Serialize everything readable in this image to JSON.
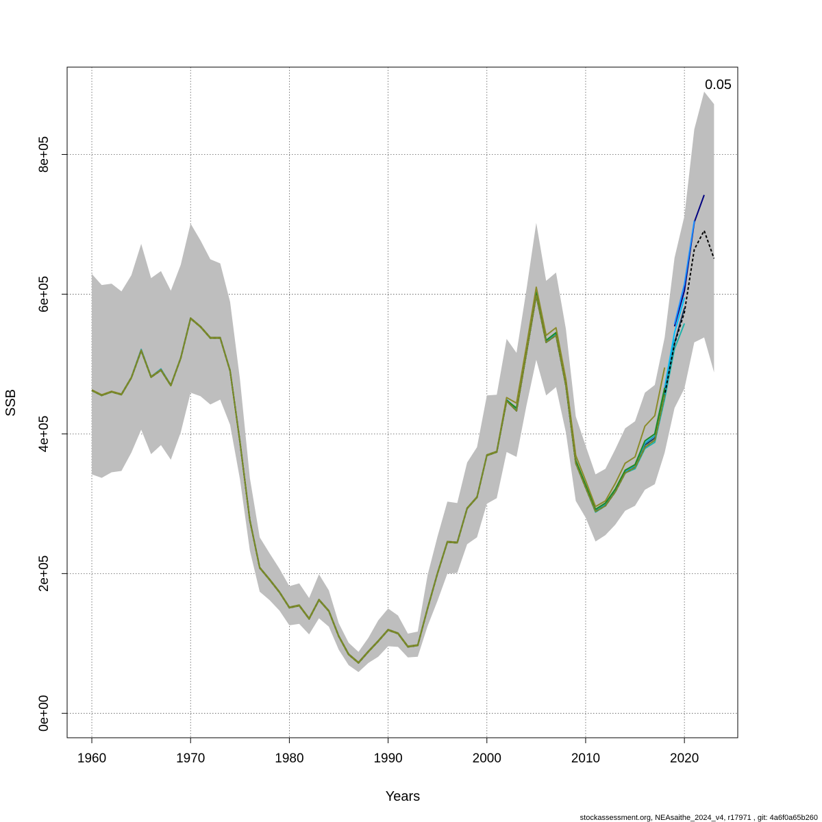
{
  "chart_data": {
    "type": "line",
    "title": "",
    "xlabel": "Years",
    "ylabel": "SSB",
    "xlim": [
      1957.5,
      2025.4
    ],
    "ylim": [
      -35000,
      925000
    ],
    "x_ticks": [
      1960,
      1970,
      1980,
      1990,
      2000,
      2010,
      2020
    ],
    "x_tick_labels": [
      "1960",
      "1970",
      "1980",
      "1990",
      "2000",
      "2010",
      "2020"
    ],
    "y_ticks": [
      0,
      200000,
      400000,
      600000,
      800000
    ],
    "y_tick_labels": [
      "0e+00",
      "2e+05",
      "4e+05",
      "6e+05",
      "8e+05"
    ],
    "grid": true,
    "annotation": "0.05",
    "footer": "stockassessment.org, NEAsaithe_2024_v4, r17971 , git: 4a6f0a65b260",
    "band": {
      "x": [
        1960,
        1961,
        1962,
        1963,
        1964,
        1965,
        1966,
        1967,
        1968,
        1969,
        1970,
        1971,
        1972,
        1973,
        1974,
        1975,
        1976,
        1977,
        1978,
        1979,
        1980,
        1981,
        1982,
        1983,
        1984,
        1985,
        1986,
        1987,
        1988,
        1989,
        1990,
        1991,
        1992,
        1993,
        1994,
        1995,
        1996,
        1997,
        1998,
        1999,
        2000,
        2001,
        2002,
        2003,
        2004,
        2005,
        2006,
        2007,
        2008,
        2009,
        2010,
        2011,
        2012,
        2013,
        2014,
        2015,
        2016,
        2017,
        2018,
        2019,
        2020,
        2021,
        2022,
        2023
      ],
      "upper": [
        629000,
        613000,
        615000,
        604000,
        627000,
        672000,
        623000,
        633000,
        605000,
        642000,
        701000,
        677000,
        650000,
        644000,
        589000,
        478000,
        337000,
        252000,
        229000,
        207000,
        182000,
        186000,
        165000,
        199000,
        176000,
        129000,
        101000,
        88000,
        108000,
        133000,
        150000,
        140000,
        114000,
        117000,
        198000,
        253000,
        303000,
        301000,
        359000,
        381000,
        455000,
        456000,
        536000,
        516000,
        606000,
        702000,
        619000,
        631000,
        550000,
        425000,
        383000,
        342000,
        350000,
        378000,
        408000,
        418000,
        459000,
        470000,
        538000,
        652000,
        712000,
        836000,
        890000,
        872000
      ],
      "lower": [
        342000,
        337000,
        345000,
        347000,
        373000,
        406000,
        371000,
        384000,
        363000,
        402000,
        459000,
        454000,
        442000,
        449000,
        413000,
        335000,
        233000,
        174000,
        162000,
        147000,
        126000,
        128000,
        113000,
        136000,
        124000,
        91000,
        69000,
        59000,
        72000,
        81000,
        96000,
        95000,
        80000,
        81000,
        125000,
        161000,
        200000,
        201000,
        242000,
        252000,
        300000,
        308000,
        374000,
        367000,
        440000,
        506000,
        455000,
        467000,
        402000,
        304000,
        280000,
        246000,
        255000,
        270000,
        290000,
        297000,
        320000,
        328000,
        373000,
        437000,
        465000,
        531000,
        538000,
        488000
      ]
    },
    "series": [
      {
        "color": "#000000",
        "x": [
          1960,
          1961,
          1962,
          1963,
          1964,
          1965,
          1966,
          1967,
          1968,
          1969,
          1970,
          1971,
          1972,
          1973,
          1974,
          1975,
          1976,
          1977,
          1978,
          1979,
          1980,
          1981,
          1982,
          1983,
          1984,
          1985,
          1986,
          1987,
          1988,
          1989,
          1990,
          1991,
          1992,
          1993,
          1994,
          1995,
          1996,
          1997,
          1998,
          1999,
          2000,
          2001,
          2002,
          2003,
          2004,
          2005,
          2006,
          2007,
          2008,
          2009,
          2010,
          2011,
          2012,
          2013,
          2014,
          2015,
          2016,
          2017,
          2018,
          2019,
          2020,
          2021,
          2022,
          2023
        ],
        "values": [
          462000,
          455000,
          460000,
          456000,
          480000,
          519000,
          481000,
          491000,
          469000,
          508000,
          565000,
          553000,
          537000,
          537000,
          490000,
          388000,
          276000,
          208000,
          191000,
          173000,
          151000,
          154000,
          135000,
          162000,
          146000,
          110000,
          84000,
          72000,
          88000,
          103000,
          119000,
          114000,
          95000,
          97000,
          150000,
          200000,
          245000,
          244000,
          293000,
          309000,
          369000,
          374000,
          447000,
          433000,
          515000,
          598000,
          531000,
          541000,
          469000,
          358000,
          323000,
          289000,
          297000,
          317000,
          344000,
          352000,
          381000,
          391000,
          456000,
          529000,
          574000,
          664000,
          691000,
          651000
        ]
      },
      {
        "color": "#000080",
        "x": [
          2019,
          2020,
          2021,
          2022
        ],
        "values": [
          554000,
          605000,
          703000,
          742000
        ]
      },
      {
        "color": "#1e90ff",
        "x": [
          2019,
          2020,
          2021
        ],
        "values": [
          557000,
          614000,
          705000
        ]
      },
      {
        "color": "#1e3a5f",
        "x": [
          2000,
          2001,
          2002,
          2003,
          2004,
          2005,
          2006,
          2007,
          2008,
          2009,
          2010,
          2011,
          2012,
          2013,
          2014,
          2015,
          2016,
          2017,
          2018,
          2019,
          2020
        ],
        "values": [
          369000,
          374000,
          447000,
          433000,
          515000,
          598000,
          531000,
          541000,
          469000,
          358000,
          323000,
          289000,
          297000,
          317000,
          344000,
          352000,
          384000,
          394000,
          458000,
          530000,
          580000
        ]
      },
      {
        "color": "#00bfff",
        "x": [
          2016,
          2017,
          2018,
          2019,
          2020
        ],
        "values": [
          389000,
          400000,
          466000,
          545000,
          595000
        ]
      },
      {
        "color": "#20b2aa",
        "x": [
          2000,
          2001,
          2002,
          2003,
          2004,
          2005,
          2006,
          2007,
          2008,
          2009,
          2010,
          2011,
          2012,
          2013,
          2014,
          2015,
          2016,
          2017,
          2018,
          2019,
          2020
        ],
        "values": [
          369000,
          374000,
          447000,
          436000,
          515000,
          600000,
          531000,
          541000,
          469000,
          358000,
          323000,
          288000,
          297000,
          317000,
          344000,
          350000,
          379000,
          388000,
          450000,
          522000,
          558000
        ]
      },
      {
        "color": "#1aa3c4",
        "x": [
          1960,
          1961,
          1962,
          1963,
          1964,
          1965,
          1966,
          1967,
          1968,
          1969,
          1970,
          1971,
          1972,
          1973,
          1974,
          1975,
          1976,
          1977,
          1978,
          1979,
          1980,
          1981,
          1982,
          1983,
          1984,
          1985,
          1986,
          1987,
          1988,
          1989,
          1990,
          1991,
          1992,
          1993,
          1994,
          1995,
          1996,
          1997,
          1998,
          1999,
          2000,
          2001,
          2002,
          2003,
          2004,
          2005,
          2006,
          2007,
          2008,
          2009,
          2010,
          2011,
          2012,
          2013,
          2014,
          2015,
          2016,
          2017,
          2018,
          2019
        ],
        "values": [
          462000,
          455000,
          460000,
          457000,
          481000,
          521000,
          482000,
          493000,
          470000,
          509000,
          566000,
          554000,
          538000,
          538000,
          491000,
          389000,
          277000,
          209000,
          192000,
          174000,
          152000,
          155000,
          136000,
          163000,
          147000,
          111000,
          85000,
          73000,
          89000,
          104000,
          120000,
          115000,
          96000,
          98000,
          151000,
          201000,
          246000,
          245000,
          294000,
          310000,
          370000,
          375000,
          449000,
          436000,
          517000,
          602000,
          533000,
          543000,
          471000,
          360000,
          325000,
          290000,
          299000,
          319000,
          346000,
          354000,
          386000,
          397000,
          462000,
          535000
        ]
      },
      {
        "color": "#228b22",
        "x": [
          1960,
          1961,
          1962,
          1963,
          1964,
          1965,
          1966,
          1967,
          1968,
          1969,
          1970,
          1971,
          1972,
          1973,
          1974,
          1975,
          1976,
          1977,
          1978,
          1979,
          1980,
          1981,
          1982,
          1983,
          1984,
          1985,
          1986,
          1987,
          1988,
          1989,
          1990,
          1991,
          1992,
          1993,
          1994,
          1995,
          1996,
          1997,
          1998,
          1999,
          2000,
          2001,
          2002,
          2003,
          2004,
          2005,
          2006,
          2007,
          2008,
          2009,
          2010,
          2011,
          2012,
          2013,
          2014,
          2015,
          2016,
          2017,
          2018
        ],
        "values": [
          462000,
          455000,
          460000,
          456000,
          480000,
          519000,
          481000,
          491000,
          469000,
          508000,
          565000,
          553000,
          537000,
          537000,
          490000,
          388000,
          276000,
          208000,
          191000,
          173000,
          151000,
          154000,
          135000,
          162000,
          146000,
          110000,
          84000,
          72000,
          88000,
          103000,
          119000,
          114000,
          95000,
          97000,
          150000,
          200000,
          245000,
          244000,
          293000,
          309000,
          369000,
          374000,
          448000,
          437000,
          518000,
          603000,
          534000,
          545000,
          472000,
          362000,
          327000,
          292000,
          301000,
          321000,
          348000,
          356000,
          390000,
          400000,
          466000
        ]
      },
      {
        "color": "#8b8b2a",
        "x": [
          1960,
          1961,
          1962,
          1963,
          1964,
          1965,
          1966,
          1967,
          1968,
          1969,
          1970,
          1971,
          1972,
          1973,
          1974,
          1975,
          1976,
          1977,
          1978,
          1979,
          1980,
          1981,
          1982,
          1983,
          1984,
          1985,
          1986,
          1987,
          1988,
          1989,
          1990,
          1991,
          1992,
          1993,
          1994,
          1995,
          1996,
          1997,
          1998,
          1999,
          2000,
          2001,
          2002,
          2003,
          2004,
          2005,
          2006,
          2007,
          2008,
          2009,
          2010,
          2011,
          2012,
          2013,
          2014,
          2015,
          2016,
          2017,
          2018
        ],
        "values": [
          463000,
          456000,
          461000,
          457000,
          481000,
          520000,
          482000,
          492000,
          470000,
          509000,
          566000,
          554000,
          538000,
          538000,
          491000,
          389000,
          277000,
          209000,
          192000,
          174000,
          152000,
          155000,
          136000,
          163000,
          147000,
          111000,
          85000,
          73000,
          89000,
          104000,
          120000,
          115000,
          96000,
          98000,
          151000,
          201000,
          246000,
          245000,
          294000,
          310000,
          370000,
          375000,
          452000,
          444000,
          525000,
          610000,
          541000,
          552000,
          478000,
          369000,
          333000,
          296000,
          304000,
          329000,
          358000,
          367000,
          411000,
          426000,
          495000
        ]
      }
    ]
  }
}
